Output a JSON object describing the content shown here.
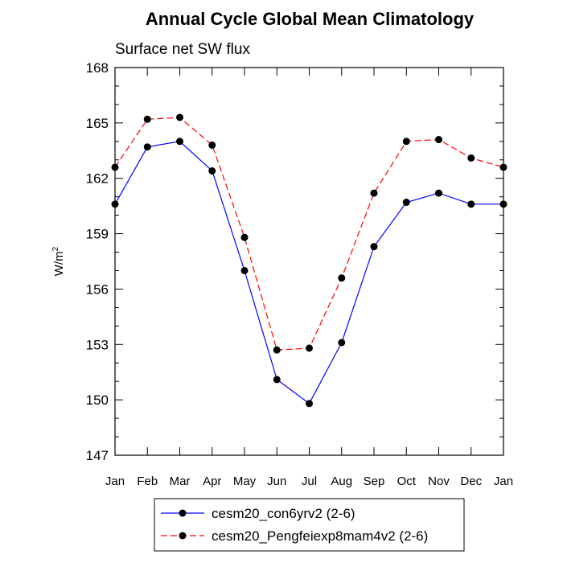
{
  "chart_data": {
    "type": "line",
    "title": "Annual Cycle Global Mean Climatology",
    "subtitle": "Surface net SW flux",
    "ylabel": "W/m",
    "ylabel_sup": "2",
    "categories": [
      "Jan",
      "Feb",
      "Mar",
      "Apr",
      "May",
      "Jun",
      "Jul",
      "Aug",
      "Sep",
      "Oct",
      "Nov",
      "Dec",
      "Jan"
    ],
    "ylim": [
      147,
      168
    ],
    "yticks": [
      147,
      150,
      153,
      156,
      159,
      162,
      165,
      168
    ],
    "grid": false,
    "legend_position": "bottom",
    "series": [
      {
        "name": "cesm20_con6yrv2 (2-6)",
        "color": "#0000ff",
        "dash": "solid",
        "values": [
          160.6,
          163.7,
          164.0,
          162.4,
          157.0,
          151.1,
          149.8,
          153.1,
          158.3,
          160.7,
          161.2,
          160.6,
          160.6
        ]
      },
      {
        "name": "cesm20_Pengfeiexp8mam4v2 (2-6)",
        "color": "#ff0000",
        "dash": "dashed",
        "values": [
          162.6,
          165.2,
          165.3,
          163.8,
          158.8,
          152.7,
          152.8,
          156.6,
          161.2,
          164.0,
          164.1,
          163.1,
          162.6
        ]
      }
    ]
  }
}
